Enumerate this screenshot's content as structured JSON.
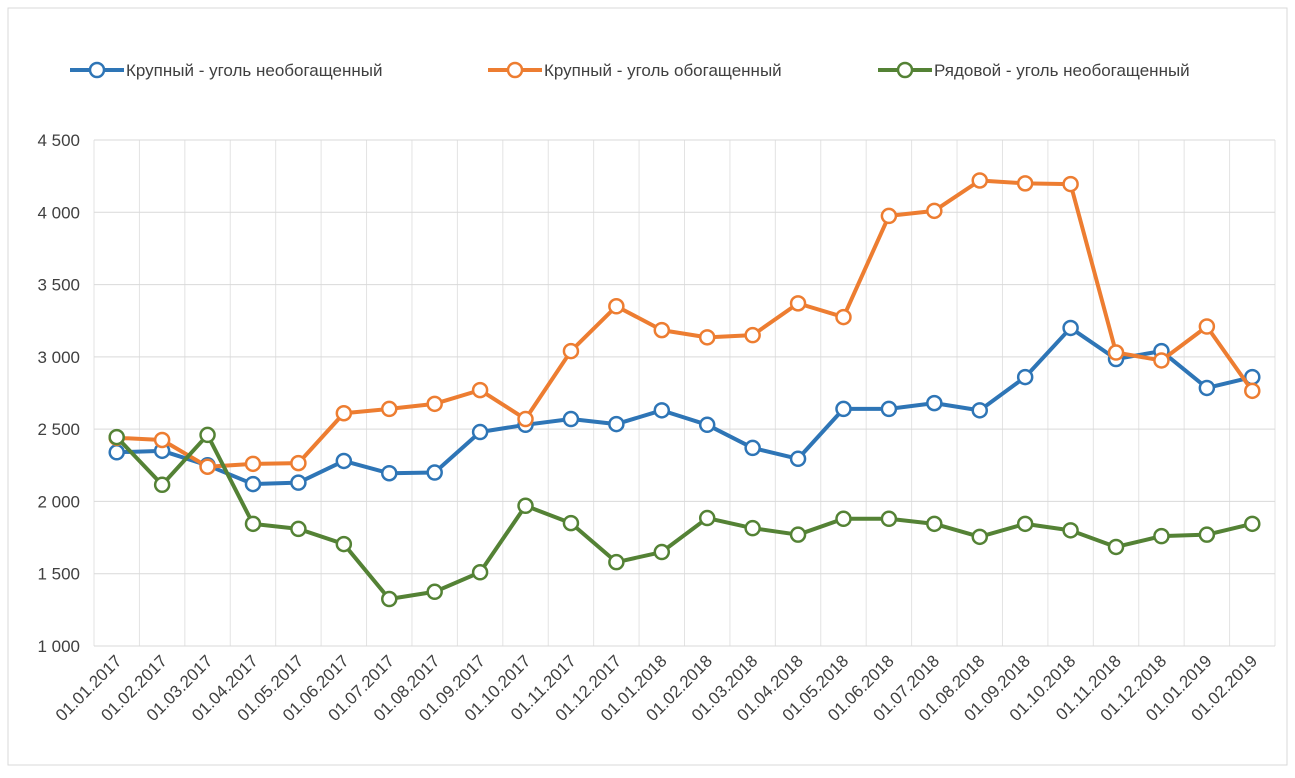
{
  "chart_data": {
    "type": "line",
    "categories": [
      "01.01.2017",
      "01.02.2017",
      "01.03.2017",
      "01.04.2017",
      "01.05.2017",
      "01.06.2017",
      "01.07.2017",
      "01.08.2017",
      "01.09.2017",
      "01.10.2017",
      "01.11.2017",
      "01.12.2017",
      "01.01.2018",
      "01.02.2018",
      "01.03.2018",
      "01.04.2018",
      "01.05.2018",
      "01.06.2018",
      "01.07.2018",
      "01.08.2018",
      "01.09.2018",
      "01.10.2018",
      "01.11.2018",
      "01.12.2018",
      "01.01.2019",
      "01.02.2019"
    ],
    "series": [
      {
        "name": "Крупный - уголь необогащенный",
        "color": "#2e75b6",
        "values": [
          2340,
          2350,
          2250,
          2120,
          2130,
          2280,
          2195,
          2200,
          2480,
          2530,
          2570,
          2535,
          2630,
          2530,
          2370,
          2295,
          2640,
          2640,
          2680,
          2630,
          2860,
          3200,
          2985,
          3040,
          2785,
          2860
        ]
      },
      {
        "name": "Крупный - уголь обогащенный",
        "color": "#ed7d31",
        "values": [
          2440,
          2425,
          2240,
          2260,
          2265,
          2610,
          2640,
          2675,
          2770,
          2570,
          3040,
          3350,
          3185,
          3135,
          3150,
          3370,
          3275,
          3975,
          4010,
          4220,
          4200,
          4195,
          3030,
          2975,
          3210,
          2765
        ]
      },
      {
        "name": "Рядовой - уголь необогащенный",
        "color": "#548235",
        "values": [
          2445,
          2115,
          2460,
          1845,
          1810,
          1705,
          1325,
          1375,
          1510,
          1970,
          1850,
          1580,
          1650,
          1885,
          1815,
          1770,
          1880,
          1880,
          1845,
          1755,
          1845,
          1800,
          1685,
          1760,
          1770,
          1845
        ]
      }
    ],
    "ylim": [
      1000,
      4500
    ],
    "yticks": [
      {
        "value": 1000,
        "label": "1 000"
      },
      {
        "value": 1500,
        "label": "1 500"
      },
      {
        "value": 2000,
        "label": "2 000"
      },
      {
        "value": 2500,
        "label": "2 500"
      },
      {
        "value": 3000,
        "label": "3 000"
      },
      {
        "value": 3500,
        "label": "3 500"
      },
      {
        "value": 4000,
        "label": "4 000"
      },
      {
        "value": 4500,
        "label": "4 500"
      }
    ],
    "grid": true,
    "legend": "top"
  }
}
